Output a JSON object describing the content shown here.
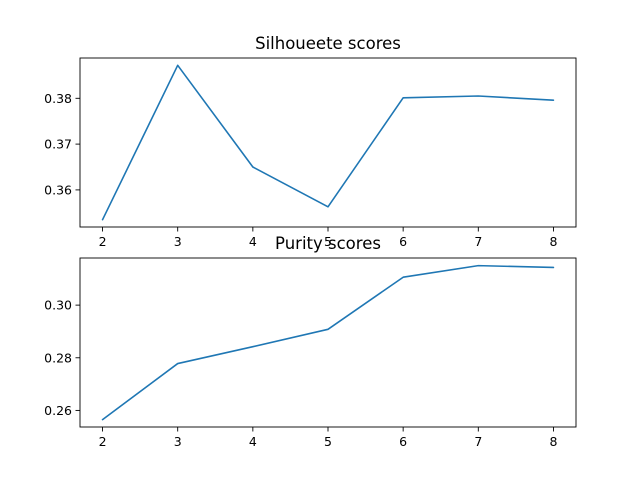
{
  "chart_data": [
    {
      "type": "line",
      "title": "Silhoueete scores",
      "xlabel": "",
      "ylabel": "",
      "x": [
        2,
        3,
        4,
        5,
        6,
        7,
        8
      ],
      "series": [
        {
          "values": [
            0.3535,
            0.3872,
            0.365,
            0.3563,
            0.3801,
            0.3805,
            0.3796
          ],
          "color": "#1f77b4"
        }
      ],
      "xlim": [
        1.7,
        8.3
      ],
      "ylim": [
        0.3519,
        0.3888
      ],
      "xticks": [
        2,
        3,
        4,
        5,
        6,
        7,
        8
      ],
      "xtick_labels": [
        "2",
        "3",
        "4",
        "5",
        "6",
        "7",
        "8"
      ],
      "yticks": [
        0.36,
        0.37,
        0.38
      ],
      "ytick_labels": [
        "0.36",
        "0.37",
        "0.38"
      ],
      "grid": false
    },
    {
      "type": "line",
      "title": "Purity scores",
      "xlabel": "",
      "ylabel": "",
      "x": [
        2,
        3,
        4,
        5,
        6,
        7,
        8
      ],
      "series": [
        {
          "values": [
            0.2565,
            0.2778,
            0.2842,
            0.2908,
            0.3106,
            0.315,
            0.3143
          ],
          "color": "#1f77b4"
        }
      ],
      "xlim": [
        1.7,
        8.3
      ],
      "ylim": [
        0.2537,
        0.3179
      ],
      "xticks": [
        2,
        3,
        4,
        5,
        6,
        7,
        8
      ],
      "xtick_labels": [
        "2",
        "3",
        "4",
        "5",
        "6",
        "7",
        "8"
      ],
      "yticks": [
        0.26,
        0.28,
        0.3
      ],
      "ytick_labels": [
        "0.26",
        "0.28",
        "0.30"
      ],
      "grid": false
    }
  ]
}
